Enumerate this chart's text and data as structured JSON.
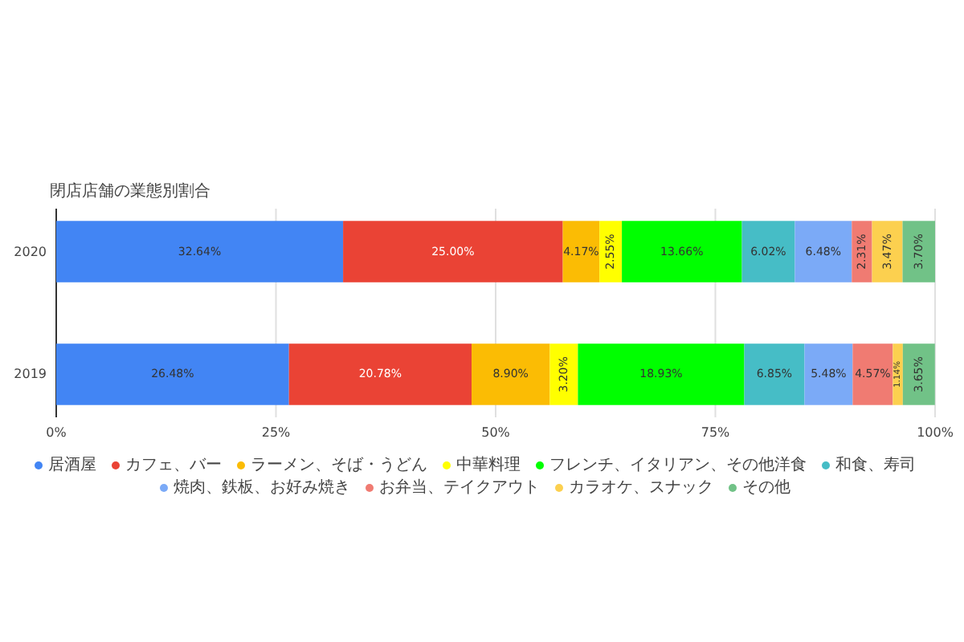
{
  "chart_data": {
    "type": "bar",
    "orientation": "horizontal",
    "stacked": true,
    "title": "閉店店舗の業態別割合",
    "categories": [
      "2020",
      "2019"
    ],
    "series": [
      {
        "name": "居酒屋",
        "color": "#4285f4",
        "values": [
          32.64,
          26.48
        ],
        "value_labels": [
          "32.64%",
          "26.48%"
        ]
      },
      {
        "name": "カフェ、バー",
        "color": "#ea4335",
        "values": [
          25.0,
          20.78
        ],
        "value_labels": [
          "25.00%",
          "20.78%"
        ]
      },
      {
        "name": "ラーメン、そば・うどん",
        "color": "#fbbc04",
        "values": [
          4.17,
          8.9
        ],
        "value_labels": [
          "4.17%",
          "8.90%"
        ]
      },
      {
        "name": "中華料理",
        "color": "#ffff00",
        "values": [
          2.55,
          3.2
        ],
        "value_labels": [
          "2.55%",
          "3.20%"
        ]
      },
      {
        "name": "フレンチ、イタリアン、その他洋食",
        "color": "#00ff00",
        "values": [
          13.66,
          18.93
        ],
        "value_labels": [
          "13.66%",
          "18.93%"
        ]
      },
      {
        "name": "和食、寿司",
        "color": "#46bdc6",
        "values": [
          6.02,
          6.85
        ],
        "value_labels": [
          "6.02%",
          "6.85%"
        ]
      },
      {
        "name": "焼肉、鉄板、お好み焼き",
        "color": "#7baaf7",
        "values": [
          6.48,
          5.48
        ],
        "value_labels": [
          "6.48%",
          "5.48%"
        ]
      },
      {
        "name": "お弁当、テイクアウト",
        "color": "#f07b72",
        "values": [
          2.31,
          4.57
        ],
        "value_labels": [
          "2.31%",
          "4.57%"
        ]
      },
      {
        "name": "カラオケ、スナック",
        "color": "#fcd04f",
        "values": [
          3.47,
          1.14
        ],
        "value_labels": [
          "3.47%",
          "1.14%"
        ]
      },
      {
        "name": "その他",
        "color": "#71c287",
        "values": [
          3.7,
          3.65
        ],
        "value_labels": [
          "3.70%",
          "3.65%"
        ]
      }
    ],
    "xlim": [
      0,
      100
    ],
    "xticks": [
      {
        "value": 0,
        "label": "0%"
      },
      {
        "value": 25,
        "label": "25%"
      },
      {
        "value": 50,
        "label": "50%"
      },
      {
        "value": 75,
        "label": "75%"
      },
      {
        "value": 100,
        "label": "100%"
      }
    ],
    "grid": "x",
    "legend": "bottom"
  }
}
